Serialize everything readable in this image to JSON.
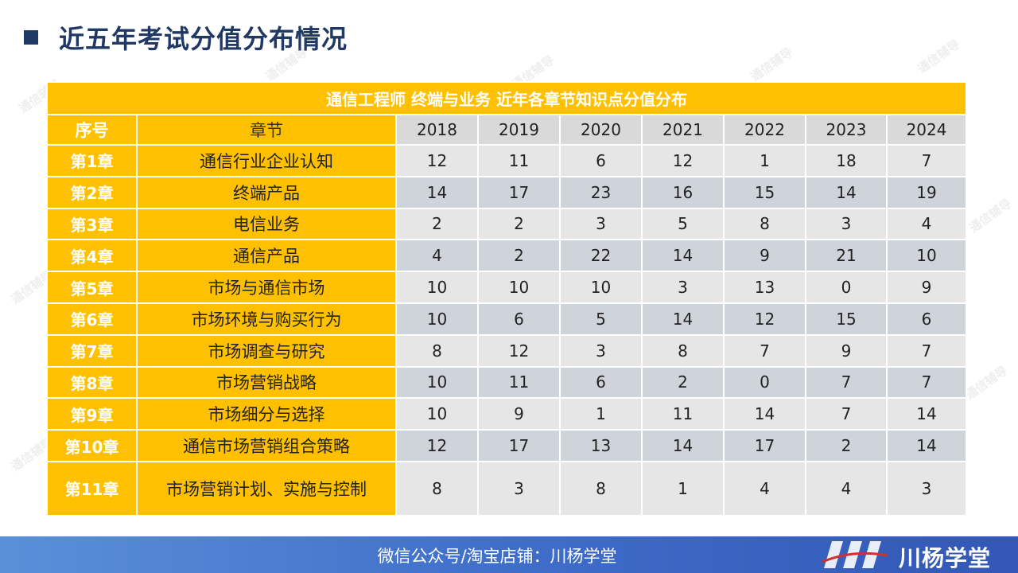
{
  "title": "近五年考试分值分布情况",
  "watermark_text": "通信辅导",
  "table": {
    "caption": "通信工程师 终端与业务 近年各章节知识点分值分布",
    "header_no": "序号",
    "header_chapter": "章节",
    "years": [
      "2018",
      "2019",
      "2020",
      "2021",
      "2022",
      "2023",
      "2024"
    ],
    "rows": [
      {
        "no": "第1章",
        "chapter": "通信行业企业认知",
        "values": [
          "12",
          "11",
          "6",
          "12",
          "1",
          "18",
          "7"
        ]
      },
      {
        "no": "第2章",
        "chapter": "终端产品",
        "values": [
          "14",
          "17",
          "23",
          "16",
          "15",
          "14",
          "19"
        ]
      },
      {
        "no": "第3章",
        "chapter": "电信业务",
        "values": [
          "2",
          "2",
          "3",
          "5",
          "8",
          "3",
          "4"
        ]
      },
      {
        "no": "第4章",
        "chapter": "通信产品",
        "values": [
          "4",
          "2",
          "22",
          "14",
          "9",
          "21",
          "10"
        ]
      },
      {
        "no": "第5章",
        "chapter": "市场与通信市场",
        "values": [
          "10",
          "10",
          "10",
          "3",
          "13",
          "0",
          "9"
        ]
      },
      {
        "no": "第6章",
        "chapter": "市场环境与购买行为",
        "values": [
          "10",
          "6",
          "5",
          "14",
          "12",
          "15",
          "6"
        ]
      },
      {
        "no": "第7章",
        "chapter": "市场调查与研究",
        "values": [
          "8",
          "12",
          "3",
          "8",
          "7",
          "9",
          "7"
        ]
      },
      {
        "no": "第8章",
        "chapter": "市场营销战略",
        "values": [
          "10",
          "11",
          "6",
          "2",
          "0",
          "7",
          "7"
        ]
      },
      {
        "no": "第9章",
        "chapter": "市场细分与选择",
        "values": [
          "10",
          "9",
          "1",
          "11",
          "14",
          "7",
          "14"
        ]
      },
      {
        "no": "第10章",
        "chapter": "通信市场营销组合策略",
        "values": [
          "12",
          "17",
          "13",
          "14",
          "17",
          "2",
          "14"
        ]
      },
      {
        "no": "第11章",
        "chapter": "市场营销计划、实施与控制",
        "values": [
          "8",
          "3",
          "8",
          "1",
          "4",
          "4",
          "3"
        ]
      }
    ]
  },
  "footer": {
    "text": "微信公众号/淘宝店铺：川杨学堂",
    "logo_text": "川杨学堂"
  },
  "colors": {
    "accent": "#ffc000",
    "title": "#1f3864",
    "footer": "#3f6ec9"
  }
}
